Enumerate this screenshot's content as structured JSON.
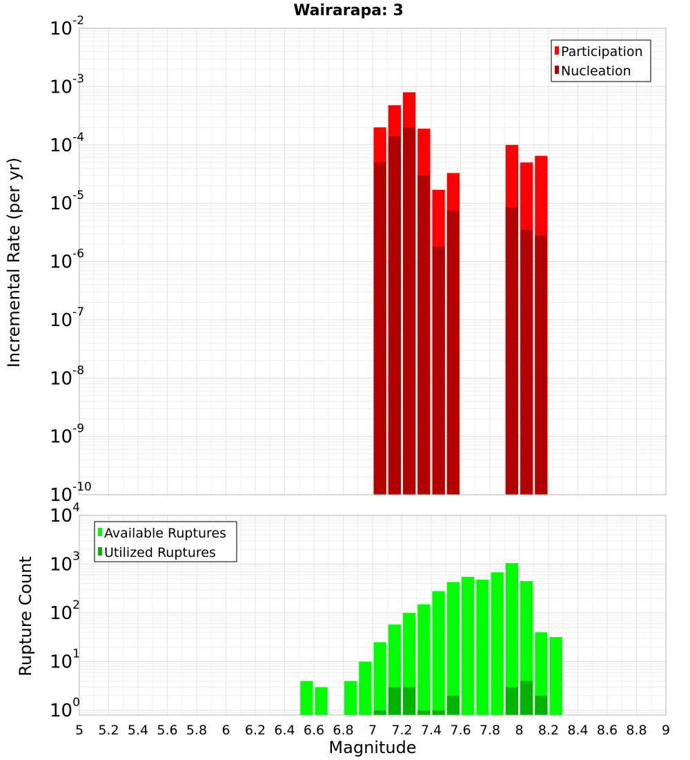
{
  "chart_data": [
    {
      "type": "bar",
      "title": "Wairarapa: 3",
      "xlabel": "Magnitude",
      "ylabel": "Incremental Rate (per yr)",
      "yscale": "log",
      "ylim": [
        1e-10,
        0.01
      ],
      "xlim": [
        5,
        9
      ],
      "grid": true,
      "legend_position": "top-right",
      "series": [
        {
          "name": "Participation",
          "color": "#ff0000",
          "x": [
            7.05,
            7.15,
            7.25,
            7.35,
            7.45,
            7.55,
            7.95,
            8.05,
            8.15
          ],
          "values": [
            0.0002,
            0.00048,
            0.0008,
            0.00019,
            1.7e-05,
            3.3e-05,
            0.0001,
            5e-05,
            6.5e-05
          ]
        },
        {
          "name": "Nucleation",
          "color": "#b30000",
          "x": [
            7.05,
            7.15,
            7.25,
            7.35,
            7.45,
            7.55,
            7.95,
            8.05,
            8.15
          ],
          "values": [
            5e-05,
            0.00014,
            0.0002,
            3e-05,
            1.8e-06,
            7.5e-06,
            8.5e-06,
            3.5e-06,
            2.8e-06
          ]
        }
      ],
      "yticks": [
        {
          "base": "10",
          "exp": "-10"
        },
        {
          "base": "10",
          "exp": "-9"
        },
        {
          "base": "10",
          "exp": "-8"
        },
        {
          "base": "10",
          "exp": "-7"
        },
        {
          "base": "10",
          "exp": "-6"
        },
        {
          "base": "10",
          "exp": "-5"
        },
        {
          "base": "10",
          "exp": "-4"
        },
        {
          "base": "10",
          "exp": "-3"
        },
        {
          "base": "10",
          "exp": "-2"
        }
      ]
    },
    {
      "type": "bar",
      "xlabel": "Magnitude",
      "ylabel": "Rupture Count",
      "yscale": "log",
      "ylim": [
        0.8,
        10000
      ],
      "xlim": [
        5,
        9
      ],
      "grid": true,
      "legend_position": "top-left",
      "series": [
        {
          "name": "Available Ruptures",
          "color": "#00ff00",
          "x": [
            6.55,
            6.65,
            6.85,
            6.95,
            7.05,
            7.15,
            7.25,
            7.35,
            7.45,
            7.55,
            7.65,
            7.75,
            7.85,
            7.95,
            8.05,
            8.15,
            8.25
          ],
          "values": [
            4,
            3,
            4,
            10,
            25,
            58,
            100,
            150,
            280,
            430,
            550,
            480,
            680,
            1050,
            450,
            40,
            32
          ]
        },
        {
          "name": "Utilized Ruptures",
          "color": "#00b300",
          "x": [
            7.05,
            7.15,
            7.25,
            7.35,
            7.45,
            7.55,
            7.95,
            8.05,
            8.15
          ],
          "values": [
            1,
            3,
            3,
            1,
            1,
            2,
            3,
            4,
            2
          ]
        }
      ],
      "yticks": [
        {
          "base": "10",
          "exp": "0"
        },
        {
          "base": "10",
          "exp": "1"
        },
        {
          "base": "10",
          "exp": "2"
        },
        {
          "base": "10",
          "exp": "3"
        },
        {
          "base": "10",
          "exp": "4"
        }
      ],
      "xticks": [
        "5",
        "5.2",
        "5.4",
        "5.6",
        "5.8",
        "6",
        "6.2",
        "6.4",
        "6.6",
        "6.8",
        "7",
        "7.2",
        "7.4",
        "7.6",
        "7.8",
        "8",
        "8.2",
        "8.4",
        "8.6",
        "8.8",
        "9"
      ]
    }
  ]
}
